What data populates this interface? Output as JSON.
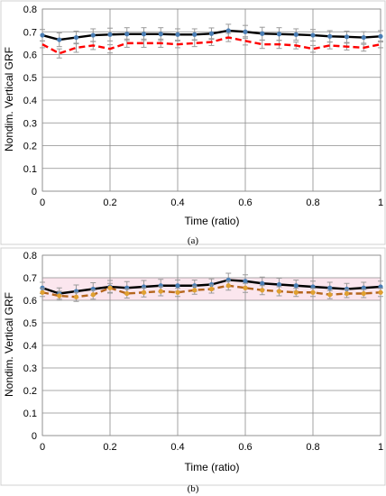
{
  "chart_data": [
    {
      "type": "line",
      "caption": "(a)",
      "xlabel": "Time (ratio)",
      "ylabel": "Nondim. Vertical GRF",
      "xlim": [
        0,
        1
      ],
      "ylim": [
        0,
        0.8
      ],
      "x_ticks": [
        "0",
        "0.2",
        "0.4",
        "0.6",
        "0.8",
        "1"
      ],
      "y_ticks": [
        "0",
        "0.1",
        "0.2",
        "0.3",
        "0.4",
        "0.5",
        "0.6",
        "0.7",
        "0.8"
      ],
      "grid": true,
      "x": [
        0,
        0.05,
        0.1,
        0.15,
        0.2,
        0.25,
        0.3,
        0.35,
        0.4,
        0.45,
        0.5,
        0.55,
        0.6,
        0.65,
        0.7,
        0.75,
        0.8,
        0.85,
        0.9,
        0.95,
        1.0
      ],
      "series": [
        {
          "color": "#000000",
          "marker_color": "#4a7eb5",
          "line_style": "solid",
          "values": [
            0.685,
            0.665,
            0.675,
            0.685,
            0.688,
            0.69,
            0.69,
            0.69,
            0.688,
            0.688,
            0.692,
            0.705,
            0.7,
            0.692,
            0.69,
            0.688,
            0.685,
            0.68,
            0.678,
            0.675,
            0.68
          ],
          "error": [
            0.025,
            0.03,
            0.028,
            0.028,
            0.028,
            0.028,
            0.028,
            0.028,
            0.025,
            0.025,
            0.025,
            0.028,
            0.028,
            0.028,
            0.028,
            0.025,
            0.025,
            0.025,
            0.025,
            0.025,
            0.025
          ]
        },
        {
          "color": "#ff0000",
          "line_style": "dashed",
          "values": [
            0.645,
            0.605,
            0.63,
            0.64,
            0.625,
            0.65,
            0.65,
            0.65,
            0.645,
            0.65,
            0.655,
            0.675,
            0.66,
            0.645,
            0.645,
            0.64,
            0.625,
            0.64,
            0.635,
            0.63,
            0.645
          ],
          "error": [
            0.015,
            0.02,
            0.02,
            0.018,
            0.018,
            0.018,
            0.018,
            0.018,
            0.015,
            0.015,
            0.015,
            0.018,
            0.018,
            0.018,
            0.018,
            0.015,
            0.015,
            0.015,
            0.015,
            0.015,
            0.015
          ]
        }
      ]
    },
    {
      "type": "line",
      "caption": "(b)",
      "xlabel": "Time (ratio)",
      "ylabel": "Nondim. Vertical GRF",
      "xlim": [
        0,
        1
      ],
      "ylim": [
        0,
        0.8
      ],
      "x_ticks": [
        "0",
        "0.2",
        "0.4",
        "0.6",
        "0.8",
        "1"
      ],
      "y_ticks": [
        "0",
        "0.1",
        "0.2",
        "0.3",
        "0.4",
        "0.5",
        "0.6",
        "0.7",
        "0.8"
      ],
      "grid": true,
      "x": [
        0,
        0.05,
        0.1,
        0.15,
        0.2,
        0.25,
        0.3,
        0.35,
        0.4,
        0.45,
        0.5,
        0.55,
        0.6,
        0.65,
        0.7,
        0.75,
        0.8,
        0.85,
        0.9,
        0.95,
        1.0
      ],
      "series": [
        {
          "color": "#000000",
          "marker_color": "#4a7eb5",
          "line_style": "solid",
          "values": [
            0.655,
            0.63,
            0.64,
            0.65,
            0.66,
            0.655,
            0.66,
            0.665,
            0.665,
            0.665,
            0.67,
            0.69,
            0.685,
            0.675,
            0.67,
            0.665,
            0.66,
            0.655,
            0.65,
            0.655,
            0.66
          ],
          "error": [
            0.025,
            0.025,
            0.028,
            0.028,
            0.028,
            0.028,
            0.028,
            0.028,
            0.025,
            0.025,
            0.025,
            0.03,
            0.028,
            0.028,
            0.028,
            0.025,
            0.025,
            0.025,
            0.025,
            0.025,
            0.025
          ]
        },
        {
          "color": "#b5651d",
          "marker_color": "#e0a030",
          "line_style": "dashed",
          "values": [
            0.635,
            0.62,
            0.615,
            0.625,
            0.655,
            0.63,
            0.635,
            0.64,
            0.635,
            0.645,
            0.65,
            0.665,
            0.655,
            0.645,
            0.64,
            0.635,
            0.635,
            0.625,
            0.63,
            0.63,
            0.635
          ],
          "error": [
            0.018,
            0.02,
            0.02,
            0.02,
            0.02,
            0.02,
            0.02,
            0.02,
            0.018,
            0.018,
            0.018,
            0.02,
            0.02,
            0.02,
            0.02,
            0.018,
            0.018,
            0.018,
            0.018,
            0.018,
            0.018
          ]
        }
      ]
    }
  ]
}
